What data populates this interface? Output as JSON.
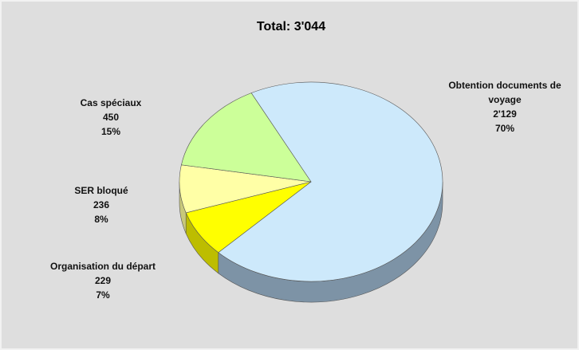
{
  "chart_data": {
    "type": "pie",
    "title": "Total: 3'044",
    "categories": [
      "Obtention documents de voyage",
      "Organisation du départ",
      "SER bloqué",
      "Cas spéciaux"
    ],
    "values": [
      2129,
      229,
      236,
      450
    ],
    "value_labels": [
      "2'129",
      "229",
      "236",
      "450"
    ],
    "percentages": [
      70,
      7,
      8,
      15
    ],
    "percentage_labels": [
      "70%",
      "7%",
      "8%",
      "15%"
    ],
    "colors": [
      "#cde9fb",
      "#ffff00",
      "#ffffa6",
      "#ccff99"
    ],
    "side_colors": [
      "#7d93a6",
      "#bdbd00",
      "#c8c87a",
      "#9fc872"
    ]
  }
}
